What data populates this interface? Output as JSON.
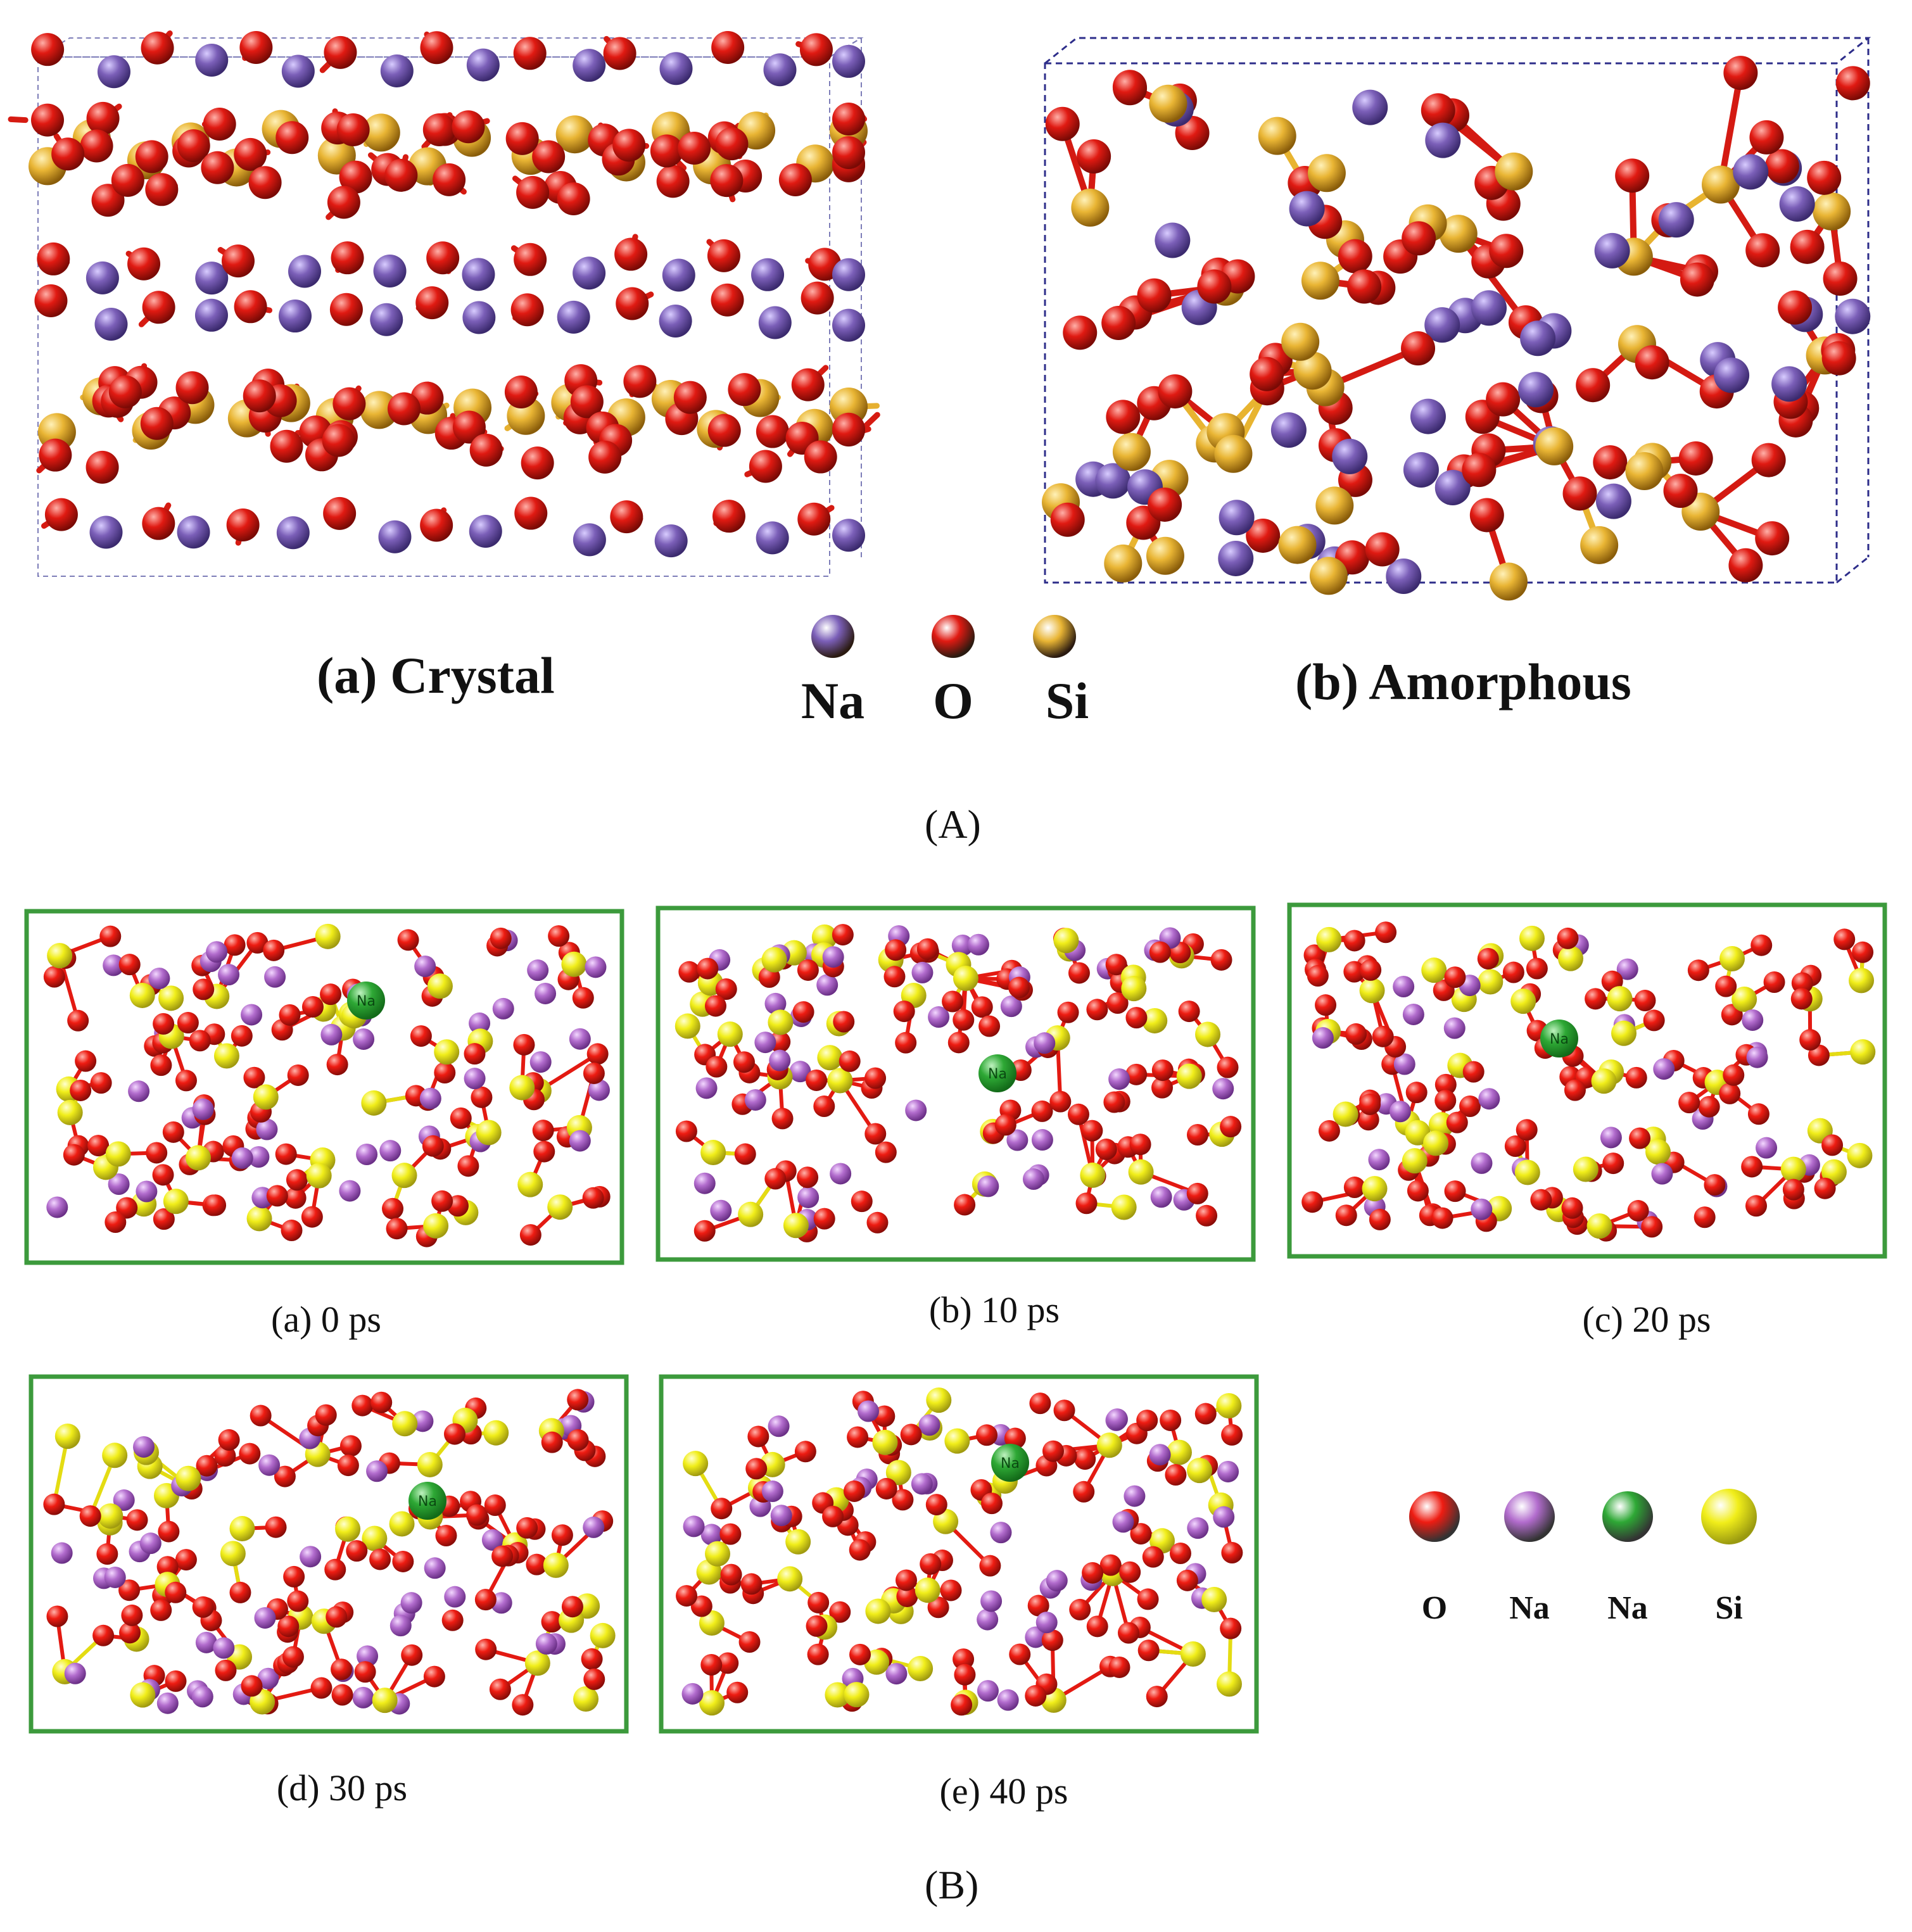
{
  "part_a": {
    "panel_a_caption": "(a) Crystal",
    "panel_b_caption": "(b) Amorphous",
    "figure_label": "(A)",
    "legend": [
      {
        "label": "Na",
        "color": "#7b5fb8"
      },
      {
        "label": "O",
        "color": "#e01a12"
      },
      {
        "label": "Si",
        "color": "#e9b534"
      }
    ]
  },
  "part_b": {
    "figure_label": "(B)",
    "snapshots": [
      {
        "caption": "(a) 0 ps",
        "tracked_atom": "Na"
      },
      {
        "caption": "(b) 10 ps",
        "tracked_atom": "Na"
      },
      {
        "caption": "(c) 20 ps",
        "tracked_atom": "Na"
      },
      {
        "caption": "(d) 30 ps",
        "tracked_atom": "Na"
      },
      {
        "caption": "(e) 40 ps",
        "tracked_atom": "Na"
      }
    ],
    "legend": [
      {
        "label": "O",
        "color": "#ee1c12"
      },
      {
        "label": "Na",
        "color": "#b26ccd"
      },
      {
        "label": "Na",
        "color": "#2ea835"
      },
      {
        "label": "Si",
        "color": "#f1ee1a"
      }
    ],
    "frame_color": "#3c9a3c"
  }
}
